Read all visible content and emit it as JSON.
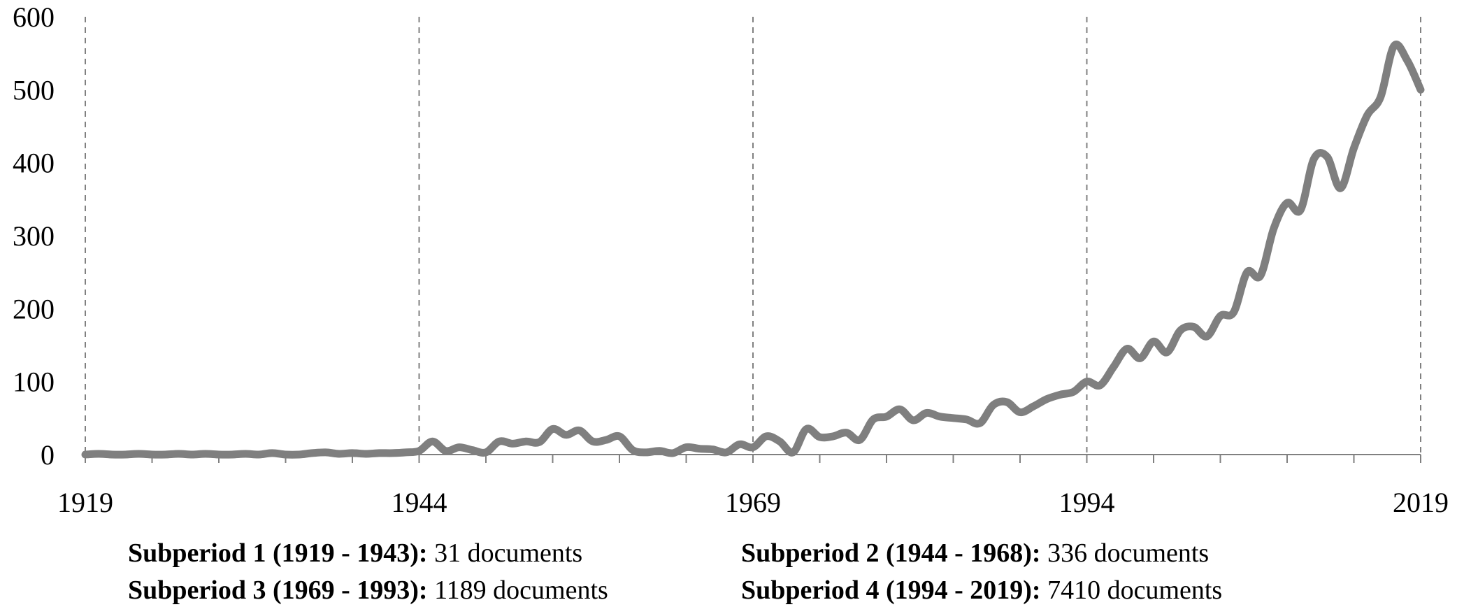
{
  "chart_data": {
    "type": "line",
    "title": "",
    "xlabel": "",
    "ylabel": "",
    "xlim": [
      1919,
      2019
    ],
    "ylim": [
      0,
      600
    ],
    "x_ticks": [
      "1919",
      "1944",
      "1969",
      "1994",
      "2019"
    ],
    "y_ticks": [
      "0",
      "100",
      "200",
      "300",
      "400",
      "500",
      "600"
    ],
    "vertical_dividers": [
      1919,
      1944,
      1969,
      1994,
      2019
    ],
    "grid": false,
    "line_color": "#7f7f7f",
    "series": [
      {
        "name": "",
        "x": [
          1919,
          1920,
          1921,
          1922,
          1923,
          1924,
          1925,
          1926,
          1927,
          1928,
          1929,
          1930,
          1931,
          1932,
          1933,
          1934,
          1935,
          1936,
          1937,
          1938,
          1939,
          1940,
          1941,
          1942,
          1943,
          1944,
          1945,
          1946,
          1947,
          1948,
          1949,
          1950,
          1951,
          1952,
          1953,
          1954,
          1955,
          1956,
          1957,
          1958,
          1959,
          1960,
          1961,
          1962,
          1963,
          1964,
          1965,
          1966,
          1967,
          1968,
          1969,
          1970,
          1971,
          1972,
          1973,
          1974,
          1975,
          1976,
          1977,
          1978,
          1979,
          1980,
          1981,
          1982,
          1983,
          1984,
          1985,
          1986,
          1987,
          1988,
          1989,
          1990,
          1991,
          1992,
          1993,
          1994,
          1995,
          1996,
          1997,
          1998,
          1999,
          2000,
          2001,
          2002,
          2003,
          2004,
          2005,
          2006,
          2007,
          2008,
          2009,
          2010,
          2011,
          2012,
          2013,
          2014,
          2015,
          2016,
          2017,
          2018,
          2019
        ],
        "values": [
          0,
          1,
          0,
          0,
          1,
          0,
          0,
          1,
          0,
          1,
          0,
          0,
          1,
          0,
          2,
          0,
          0,
          2,
          3,
          1,
          2,
          1,
          2,
          2,
          3,
          5,
          18,
          5,
          10,
          6,
          3,
          18,
          15,
          18,
          17,
          35,
          27,
          33,
          18,
          20,
          25,
          6,
          3,
          5,
          2,
          10,
          8,
          7,
          3,
          14,
          10,
          25,
          18,
          3,
          35,
          24,
          25,
          30,
          20,
          48,
          52,
          62,
          47,
          57,
          52,
          50,
          48,
          43,
          68,
          72,
          58,
          66,
          76,
          82,
          86,
          100,
          95,
          120,
          145,
          132,
          155,
          140,
          170,
          175,
          162,
          190,
          195,
          250,
          245,
          310,
          345,
          335,
          405,
          408,
          365,
          420,
          465,
          490,
          560,
          540,
          500
        ]
      }
    ]
  },
  "legend": {
    "s1": {
      "label": "Subperiod 1 (1919 - 1943):",
      "value": "31 documents"
    },
    "s2": {
      "label": "Subperiod 2 (1944 - 1968):",
      "value": "336 documents"
    },
    "s3": {
      "label": "Subperiod 3 (1969 - 1993):",
      "value": "1189 documents"
    },
    "s4": {
      "label": "Subperiod 4 (1994 -  2019):",
      "value": "7410 documents"
    }
  }
}
